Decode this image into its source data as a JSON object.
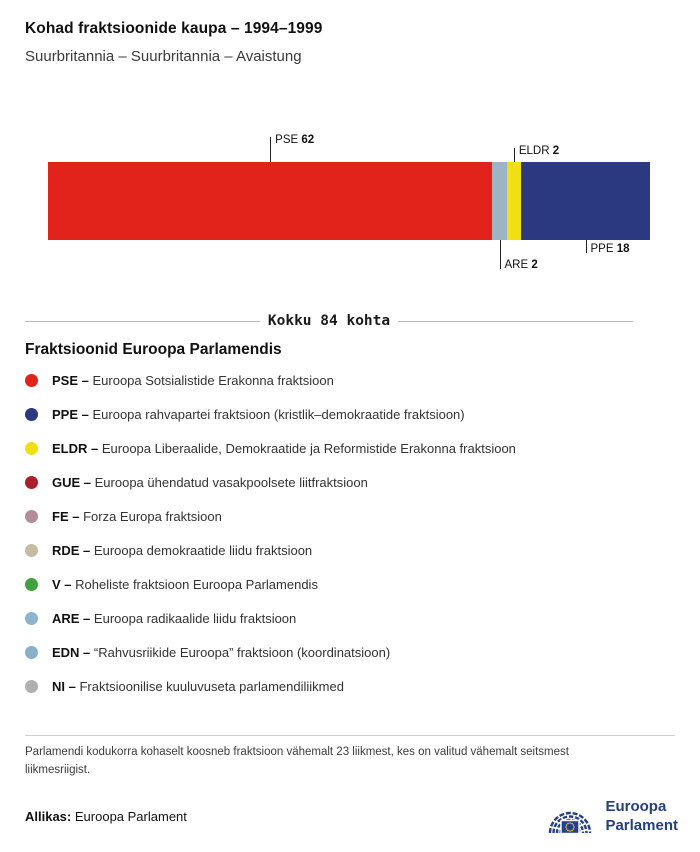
{
  "chart_data": {
    "type": "bar",
    "stacked": true,
    "orientation": "horizontal",
    "title": "Kohad fraktsioonide kaupa – 1994–1999",
    "subtitle": "Suurbritannia – Suurbritannia – Avaistung",
    "total_seats": 84,
    "total_label": "Kokku 84 kohta",
    "segments": [
      {
        "abbr": "PSE",
        "value": 62,
        "color": "#e2231b",
        "label_position": "top"
      },
      {
        "abbr": "ARE",
        "value": 2,
        "color": "#9db5c2",
        "label_position": "bottom"
      },
      {
        "abbr": "ELDR",
        "value": 2,
        "color": "#f0e013",
        "label_position": "top"
      },
      {
        "abbr": "PPE",
        "value": 18,
        "color": "#2b3a80",
        "label_position": "bottom"
      }
    ]
  },
  "legend": {
    "title": "Fraktsioonid Euroopa Parlamendis",
    "items": [
      {
        "abbr": "PSE –",
        "description": "Euroopa Sotsialistide Erakonna fraktsioon",
        "color": "#e2231b"
      },
      {
        "abbr": "PPE –",
        "description": "Euroopa rahvapartei fraktsioon (kristlik–demokraatide fraktsioon)",
        "color": "#2b3a80"
      },
      {
        "abbr": "ELDR –",
        "description": "Euroopa Liberaalide, Demokraatide ja Reformistide Erakonna fraktsioon",
        "color": "#f0e013"
      },
      {
        "abbr": "GUE –",
        "description": "Euroopa ühendatud vasakpoolsete liitfraktsioon",
        "color": "#ab1f2b"
      },
      {
        "abbr": "FE –",
        "description": "Forza Europa fraktsioon",
        "color": "#b28e96"
      },
      {
        "abbr": "RDE –",
        "description": "Euroopa demokraatide liidu fraktsioon",
        "color": "#c2bca4"
      },
      {
        "abbr": "V –",
        "description": "Roheliste fraktsioon Euroopa Parlamendis",
        "color": "#3fa13f"
      },
      {
        "abbr": "ARE –",
        "description": "Euroopa radikaalide liidu fraktsioon",
        "color": "#8db3cf"
      },
      {
        "abbr": "EDN –",
        "description": "“Rahvusriikide Euroopa” fraktsioon (koordinatsioon)",
        "color": "#8aafc9"
      },
      {
        "abbr": "NI –",
        "description": "Fraktsioonilise kuuluvuseta parlamendiliikmed",
        "color": "#b0b0ae"
      }
    ]
  },
  "footnote": "Parlamendi kodukorra kohaselt koosneb fraktsioon vähemalt 23 liikmest, kes on valitud vähemalt seitsmest liikmesriigist.",
  "source": {
    "label": "Allikas:",
    "value": "Euroopa Parlament"
  },
  "logo": {
    "line1": "Euroopa",
    "line2": "Parlament"
  }
}
